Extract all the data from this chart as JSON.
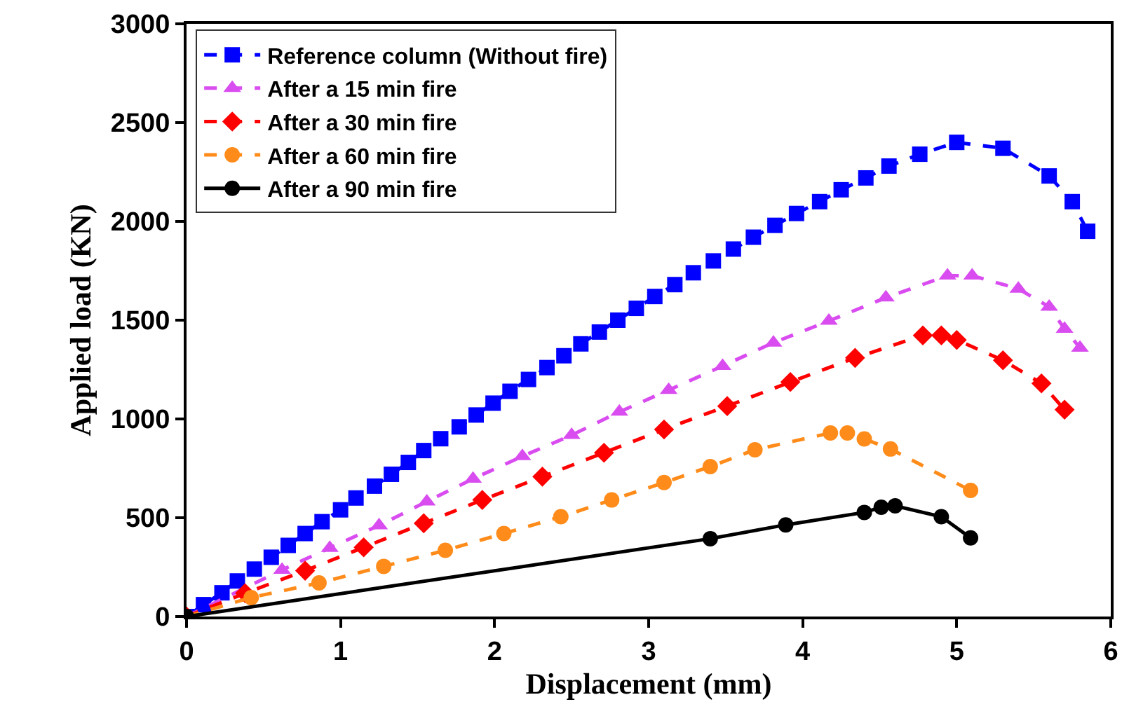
{
  "chart_data": {
    "type": "line",
    "xlabel": "Displacement (mm)",
    "ylabel": "Applied load (KN)",
    "xlim": [
      0,
      6
    ],
    "xticks": [
      0,
      1,
      2,
      3,
      4,
      5,
      6
    ],
    "ylim": [
      0,
      3000
    ],
    "yticks": [
      0,
      500,
      1000,
      1500,
      2000,
      2500,
      3000
    ],
    "legend": "top left",
    "series": [
      {
        "name": "Reference column (Without fire)",
        "color": "#0000ff",
        "marker": "square",
        "line_style": "dashed",
        "x": [
          0,
          0.11,
          0.23,
          0.33,
          0.44,
          0.55,
          0.66,
          0.77,
          0.88,
          1.0,
          1.1,
          1.22,
          1.33,
          1.44,
          1.54,
          1.65,
          1.77,
          1.88,
          1.99,
          2.1,
          2.22,
          2.34,
          2.45,
          2.56,
          2.68,
          2.8,
          2.92,
          3.04,
          3.17,
          3.29,
          3.42,
          3.55,
          3.68,
          3.82,
          3.96,
          4.11,
          4.25,
          4.41,
          4.56,
          4.76,
          5.0,
          5.3,
          5.6,
          5.75,
          5.85
        ],
        "values": [
          0,
          60,
          120,
          180,
          240,
          300,
          360,
          420,
          480,
          540,
          600,
          660,
          720,
          780,
          840,
          900,
          960,
          1020,
          1080,
          1140,
          1200,
          1260,
          1320,
          1380,
          1440,
          1500,
          1560,
          1620,
          1680,
          1740,
          1800,
          1860,
          1920,
          1980,
          2040,
          2100,
          2160,
          2220,
          2280,
          2340,
          2400,
          2370,
          2230,
          2100,
          1950
        ]
      },
      {
        "name": "After a 15 min fire",
        "color": "#d94cf0",
        "marker": "triangle",
        "line_style": "dashed",
        "x": [
          0,
          0.62,
          0.93,
          1.25,
          1.56,
          1.86,
          2.18,
          2.5,
          2.81,
          3.13,
          3.48,
          3.81,
          4.17,
          4.54,
          4.94,
          5.1,
          5.4,
          5.6,
          5.7,
          5.8
        ],
        "values": [
          0,
          236,
          347,
          461,
          582,
          697,
          811,
          918,
          1036,
          1146,
          1268,
          1386,
          1496,
          1614,
          1725,
          1725,
          1659,
          1567,
          1456,
          1360
        ]
      },
      {
        "name": "After a 30 min fire",
        "color": "#ff0000",
        "marker": "diamond",
        "line_style": "dashed",
        "x": [
          0,
          0.38,
          0.77,
          1.15,
          1.54,
          1.92,
          2.31,
          2.71,
          3.1,
          3.51,
          3.92,
          4.34,
          4.78,
          4.9,
          5.0,
          5.3,
          5.55,
          5.7
        ],
        "values": [
          0,
          118,
          232,
          350,
          472,
          590,
          708,
          829,
          947,
          1065,
          1187,
          1309,
          1423,
          1423,
          1400,
          1297,
          1180,
          1047
        ]
      },
      {
        "name": "After a 60 min fire",
        "color": "#ff8c1a",
        "marker": "circle",
        "line_style": "dashed",
        "x": [
          0,
          0.42,
          0.86,
          1.28,
          1.68,
          2.06,
          2.43,
          2.76,
          3.1,
          3.4,
          3.69,
          4.18,
          4.29,
          4.4,
          4.57,
          5.09
        ],
        "values": [
          0,
          96,
          170,
          254,
          335,
          420,
          505,
          590,
          678,
          759,
          844,
          929,
          929,
          899,
          848,
          638
        ]
      },
      {
        "name": "After a 90 min fire",
        "color": "#000000",
        "marker": "circle",
        "line_style": "solid",
        "x": [
          0,
          3.4,
          3.89,
          4.4,
          4.51,
          4.6,
          4.9,
          5.09
        ],
        "values": [
          0,
          394,
          464,
          527,
          553,
          560,
          505,
          398
        ]
      }
    ]
  }
}
